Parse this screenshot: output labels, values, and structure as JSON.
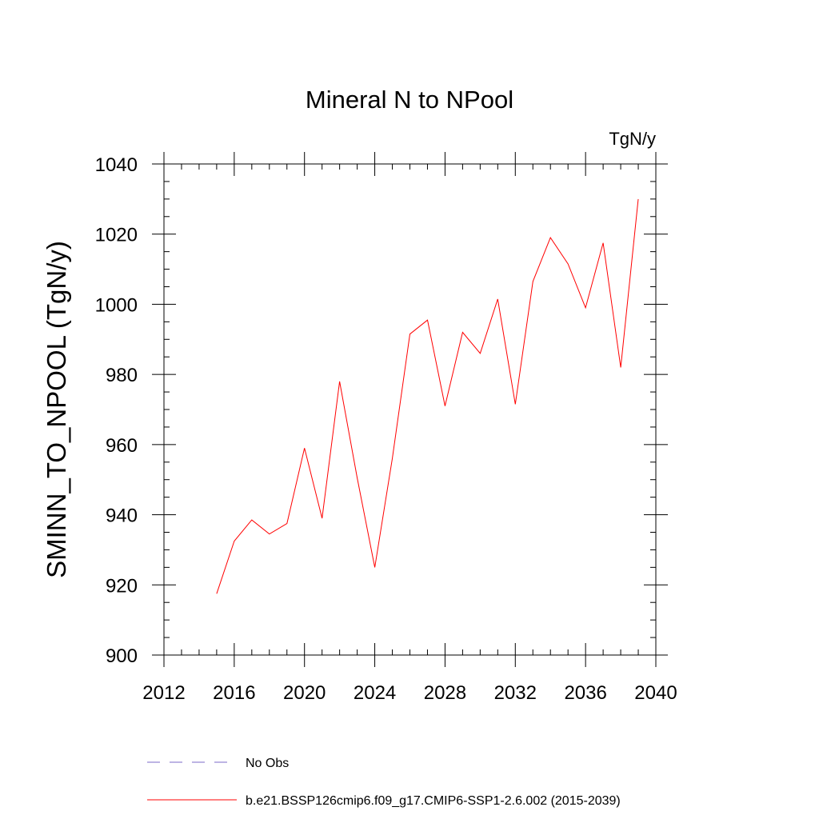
{
  "chart_data": {
    "type": "line",
    "title": "Mineral N to NPool",
    "units_label": "TgN/y",
    "xlabel": "",
    "ylabel": "SMINN_TO_NPOOL  (TgN/y)",
    "xlim": [
      2012,
      2040
    ],
    "ylim": [
      900,
      1040
    ],
    "x_ticks": [
      2012,
      2016,
      2020,
      2024,
      2028,
      2032,
      2036,
      2040
    ],
    "y_ticks": [
      900,
      920,
      940,
      960,
      980,
      1000,
      1020,
      1040
    ],
    "grid": false,
    "legend_position": "bottom",
    "series": [
      {
        "name": "No Obs",
        "color": "#7b68c8",
        "dash": "dashed",
        "x": [],
        "y": []
      },
      {
        "name": "b.e21.BSSP126cmip6.f09_g17.CMIP6-SSP1-2.6.002 (2015-2039)",
        "color": "#ff0000",
        "dash": "solid",
        "x": [
          2015,
          2016,
          2017,
          2018,
          2019,
          2020,
          2021,
          2022,
          2023,
          2024,
          2025,
          2026,
          2027,
          2028,
          2029,
          2030,
          2031,
          2032,
          2033,
          2034,
          2035,
          2036,
          2037,
          2038,
          2039
        ],
        "y": [
          917.5,
          932.5,
          938.5,
          934.5,
          937.5,
          959.0,
          939.0,
          978.0,
          950.5,
          925.0,
          956.0,
          991.5,
          995.5,
          971.0,
          992.0,
          986.0,
          1001.5,
          971.5,
          1006.5,
          1019.0,
          1011.5,
          999.0,
          1017.5,
          982.0,
          1030.0
        ]
      }
    ]
  }
}
